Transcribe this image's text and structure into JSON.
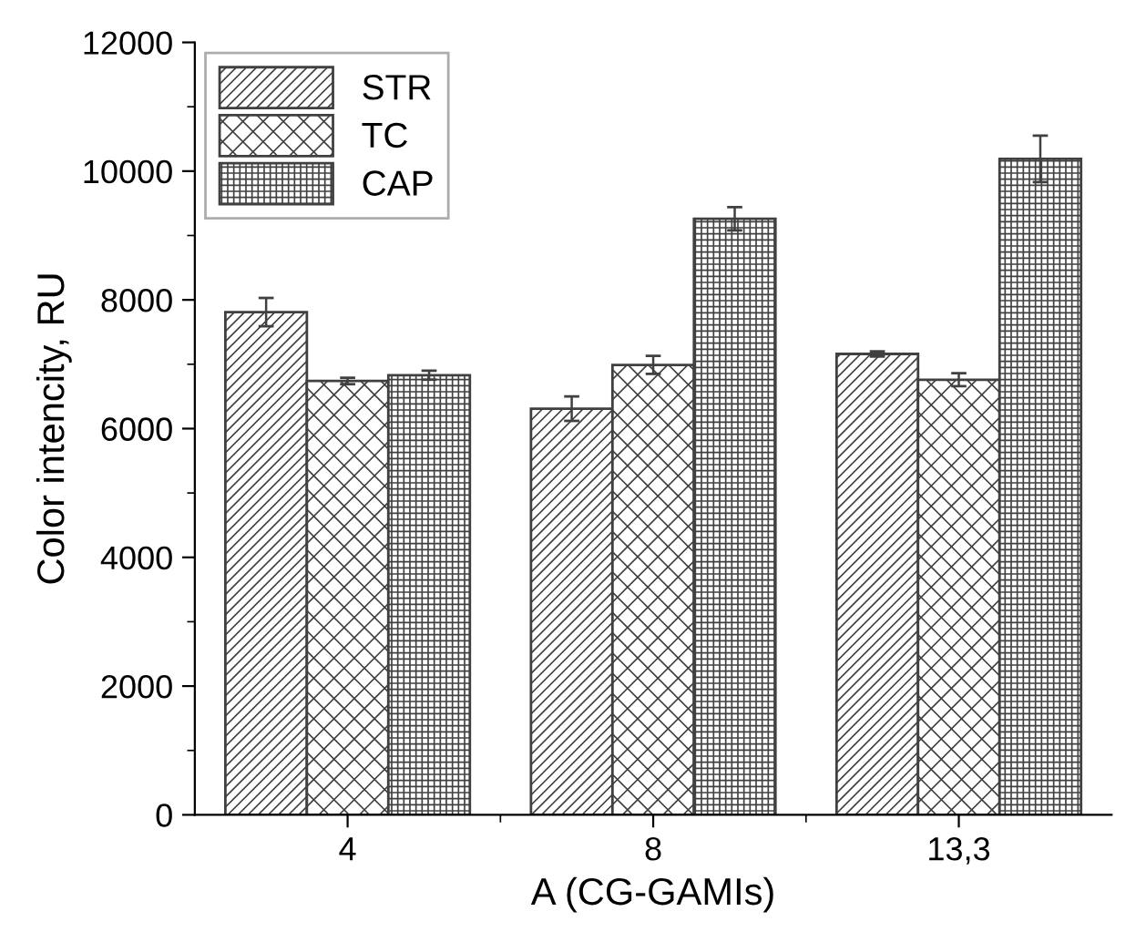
{
  "chart_data": {
    "type": "bar",
    "xlabel": "A (CG-GAMIs)",
    "ylabel": "Color intencity, RU",
    "categories": [
      "4",
      "8",
      "13,3"
    ],
    "series": [
      {
        "name": "STR",
        "color": "#404040",
        "values": [
          7810,
          6310,
          7160
        ],
        "errors": [
          220,
          190,
          40
        ]
      },
      {
        "name": "TC",
        "color": "#404040",
        "values": [
          6740,
          6990,
          6760
        ],
        "errors": [
          50,
          140,
          100
        ]
      },
      {
        "name": "CAP",
        "color": "#404040",
        "values": [
          6830,
          9260,
          10190
        ],
        "errors": [
          70,
          180,
          360
        ]
      }
    ],
    "ylim": [
      0,
      12000
    ],
    "yticks": [
      0,
      2000,
      4000,
      6000,
      8000,
      10000,
      12000
    ],
    "grid": false,
    "legend": "top left"
  }
}
